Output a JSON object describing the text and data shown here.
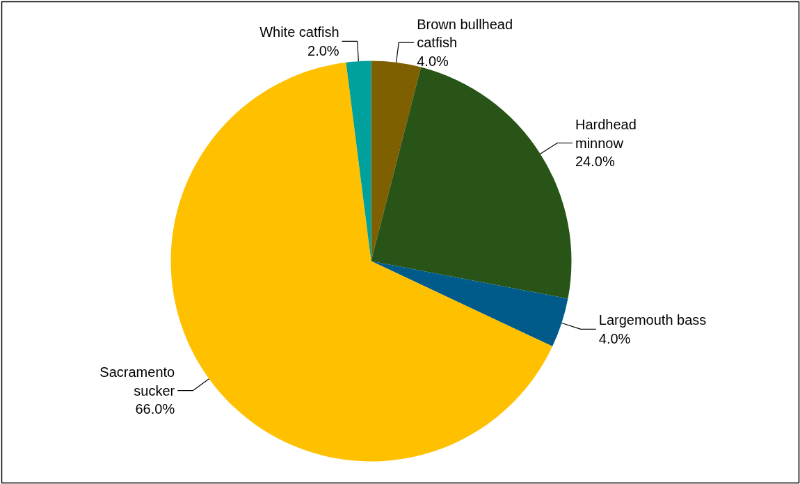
{
  "chart_data": {
    "type": "pie",
    "categories": [
      "Brown bullhead\ncatfish",
      "Hardhead\nminnow",
      "Largemouth bass",
      "Sacramento\nsucker",
      "White catfish"
    ],
    "values": [
      4,
      24,
      4,
      66,
      2
    ],
    "colors": [
      "#7f6000",
      "#285418",
      "#005b8a",
      "#ffc000",
      "#00a19c"
    ],
    "value_labels": [
      "4.0%",
      "24.0%",
      "4.0%",
      "66.0%",
      "2.0%"
    ]
  }
}
